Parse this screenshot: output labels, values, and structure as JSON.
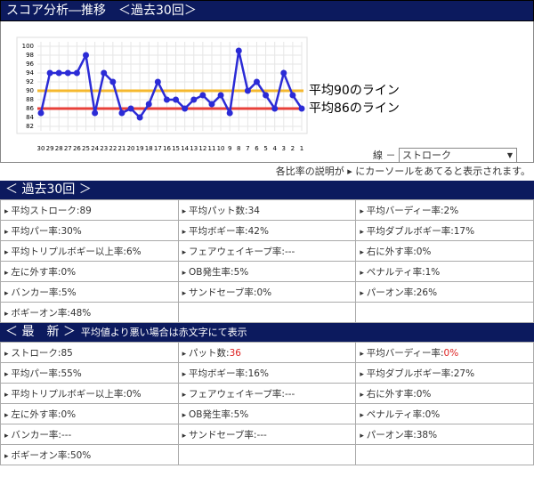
{
  "header": {
    "title": "スコア分析―推移　＜過去30回＞"
  },
  "chart_data": {
    "type": "line",
    "categories": [
      "30",
      "29",
      "28",
      "27",
      "26",
      "25",
      "24",
      "23",
      "22",
      "21",
      "20",
      "19",
      "18",
      "17",
      "16",
      "15",
      "14",
      "13",
      "12",
      "11",
      "10",
      "9",
      "8",
      "7",
      "6",
      "5",
      "4",
      "3",
      "2",
      "1"
    ],
    "values": [
      85,
      94,
      94,
      94,
      94,
      98,
      85,
      94,
      92,
      85,
      86,
      84,
      87,
      92,
      88,
      88,
      86,
      88,
      89,
      87,
      89,
      85,
      99,
      90,
      92,
      89,
      86,
      94,
      89,
      86
    ],
    "color": "#2b2bd6",
    "ylim": [
      81,
      101
    ],
    "yticks": [
      82,
      84,
      86,
      88,
      90,
      92,
      94,
      96,
      98,
      100
    ],
    "grid": true,
    "reference_lines": [
      {
        "label": "平均90のライン",
        "value": 90,
        "color": "#f5b82e"
      },
      {
        "label": "平均86のライン",
        "value": 86,
        "color": "#e8413a"
      }
    ]
  },
  "selector": {
    "label": "線 －",
    "selected": "ストローク"
  },
  "note": "各比率の説明が ▸ にカーソールをあてると表示されます。",
  "sections": [
    {
      "title": "＜ 過去30回 ＞",
      "cells": [
        {
          "label": "平均ストローク:",
          "value": "89"
        },
        {
          "label": "平均パット数:",
          "value": "34"
        },
        {
          "label": "平均バーディー率:",
          "value": "2%"
        },
        {
          "label": "平均パー率:",
          "value": "30%"
        },
        {
          "label": "平均ボギー率:",
          "value": "42%"
        },
        {
          "label": "平均ダブルボギー率:",
          "value": "17%"
        },
        {
          "label": "平均トリプルボギー以上率:",
          "value": "6%"
        },
        {
          "label": "フェアウェイキープ率:",
          "value": "---"
        },
        {
          "label": "右に外す率:",
          "value": "0%"
        },
        {
          "label": "左に外す率:",
          "value": "0%"
        },
        {
          "label": "OB発生率:",
          "value": "5%"
        },
        {
          "label": "ペナルティ率:",
          "value": "1%"
        },
        {
          "label": "バンカー率:",
          "value": "5%"
        },
        {
          "label": "サンドセーブ率:",
          "value": "0%"
        },
        {
          "label": "パーオン率:",
          "value": "26%"
        },
        {
          "label": "ボギーオン率:",
          "value": "48%"
        }
      ]
    },
    {
      "title": "＜ 最　新 ＞",
      "subtitle": "平均値より悪い場合は赤文字にて表示",
      "cells": [
        {
          "label": "ストローク:",
          "value": "85"
        },
        {
          "label": "パット数:",
          "value": "36",
          "alert": true
        },
        {
          "label": "平均バーディー率:",
          "value": "0%",
          "alert": true
        },
        {
          "label": "平均パー率:",
          "value": "55%"
        },
        {
          "label": "平均ボギー率:",
          "value": "16%"
        },
        {
          "label": "平均ダブルボギー率:",
          "value": "27%"
        },
        {
          "label": "平均トリプルボギー以上率:",
          "value": "0%"
        },
        {
          "label": "フェアウェイキープ率:",
          "value": "---"
        },
        {
          "label": "右に外す率:",
          "value": "0%"
        },
        {
          "label": "左に外す率:",
          "value": "0%"
        },
        {
          "label": "OB発生率:",
          "value": "5%"
        },
        {
          "label": "ペナルティ率:",
          "value": "0%"
        },
        {
          "label": "バンカー率:",
          "value": "---"
        },
        {
          "label": "サンドセーブ率:",
          "value": "---"
        },
        {
          "label": "パーオン率:",
          "value": "38%"
        },
        {
          "label": "ボギーオン率:",
          "value": "50%"
        }
      ]
    }
  ]
}
